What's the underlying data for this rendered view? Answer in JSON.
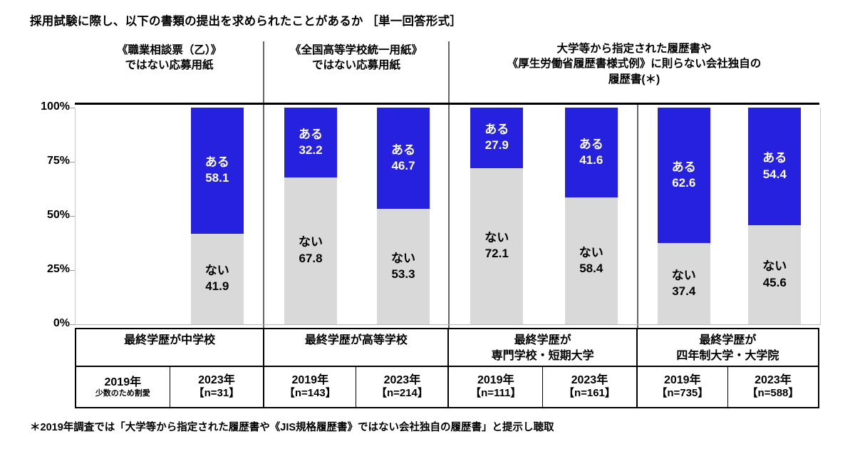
{
  "title": "採用試験に際し、以下の書類の提出を求められたことがあるか ［単一回答形式］",
  "footnote": "＊2019年調査では「大学等から指定された履歴書や《JIS規格履歴書》ではない会社独自の履歴書」と提示し聴取",
  "chart_data": {
    "type": "bar",
    "stacked": true,
    "orientation": "vertical",
    "unit": "%",
    "ylim": [
      0,
      100
    ],
    "y_tick_labels": [
      "100%",
      "75%",
      "50%",
      "25%",
      "0%"
    ],
    "grid": false,
    "legend": "labels-inside-bars",
    "series": [
      {
        "name": "ある",
        "color": "#2621DE",
        "text_color": "#FFFFFF"
      },
      {
        "name": "ない",
        "color": "#D9D9D9",
        "text_color": "#000000"
      }
    ],
    "panel_headers": [
      {
        "lines": [
          "《職業相談票（乙）》",
          "ではない応募用紙"
        ],
        "span_groups": 1
      },
      {
        "lines": [
          "《全国高等学校統一用紙》",
          "ではない応募用紙"
        ],
        "span_groups": 1
      },
      {
        "lines": [
          "大学等から指定された履歴書や",
          "《厚生労働省履歴書様式例》に則らない会社独自の",
          "履歴書(＊)"
        ],
        "span_groups": 2
      }
    ],
    "groups": [
      {
        "label_lines": [
          "最終学歴が中学校"
        ],
        "bars": [
          {
            "year": "2019年",
            "n_label": "少数のため割愛",
            "small_note": true,
            "values": null
          },
          {
            "year": "2023年",
            "n_label": "【n=31】",
            "small_note": false,
            "values": [
              58.1,
              41.9
            ]
          }
        ]
      },
      {
        "label_lines": [
          "最終学歴が高等学校"
        ],
        "bars": [
          {
            "year": "2019年",
            "n_label": "【n=143】",
            "small_note": false,
            "values": [
              32.2,
              67.8
            ]
          },
          {
            "year": "2023年",
            "n_label": "【n=214】",
            "small_note": false,
            "values": [
              46.7,
              53.3
            ]
          }
        ]
      },
      {
        "label_lines": [
          "最終学歴が",
          "専門学校・短期大学"
        ],
        "bars": [
          {
            "year": "2019年",
            "n_label": "【n=111】",
            "small_note": false,
            "values": [
              27.9,
              72.1
            ]
          },
          {
            "year": "2023年",
            "n_label": "【n=161】",
            "small_note": false,
            "values": [
              41.6,
              58.4
            ]
          }
        ]
      },
      {
        "label_lines": [
          "最終学歴が",
          "四年制大学・大学院"
        ],
        "bars": [
          {
            "year": "2019年",
            "n_label": "【n=735】",
            "small_note": false,
            "values": [
              62.6,
              37.4
            ]
          },
          {
            "year": "2023年",
            "n_label": "【n=588】",
            "small_note": false,
            "values": [
              54.4,
              45.6
            ]
          }
        ]
      }
    ]
  }
}
